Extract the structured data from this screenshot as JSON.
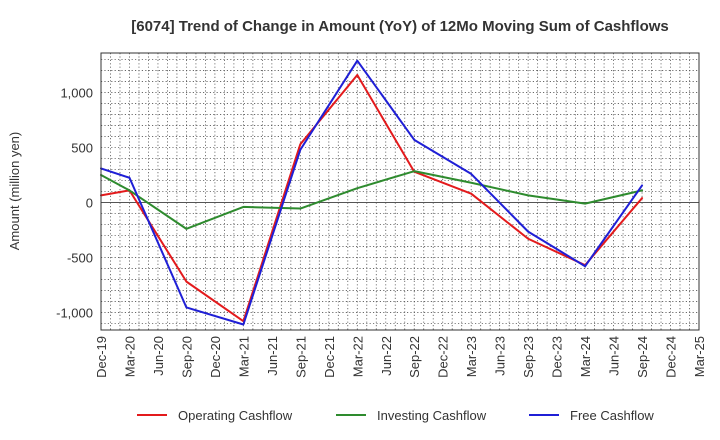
{
  "chart_data": {
    "type": "line",
    "title": "[6074]  Trend of Change in Amount (YoY) of 12Mo Moving Sum of Cashflows",
    "xlabel": "",
    "ylabel": "Amount (million yen)",
    "ylim": [
      -1160,
      1360
    ],
    "yticks": [
      -1000,
      -500,
      0,
      500,
      1000
    ],
    "ytick_labels": [
      "-1,000",
      "-500",
      "0",
      "500",
      "1,000"
    ],
    "categories": [
      "Dec-19",
      "Mar-20",
      "Jun-20",
      "Sep-20",
      "Dec-20",
      "Mar-21",
      "Jun-21",
      "Sep-21",
      "Dec-21",
      "Mar-22",
      "Jun-22",
      "Sep-22",
      "Dec-22",
      "Mar-23",
      "Jun-23",
      "Sep-23",
      "Dec-23",
      "Mar-24",
      "Jun-24",
      "Sep-24",
      "Dec-24",
      "Mar-25"
    ],
    "grid": true,
    "legend_position": "bottom",
    "series": [
      {
        "name": "Operating Cashflow",
        "color": "#e31a1c",
        "points": [
          {
            "x": "Dec-19",
            "y": 65
          },
          {
            "x": "Mar-20",
            "y": 110
          },
          {
            "x": "Sep-20",
            "y": -720
          },
          {
            "x": "Mar-21",
            "y": -1080
          },
          {
            "x": "Sep-21",
            "y": 530
          },
          {
            "x": "Mar-22",
            "y": 1160
          },
          {
            "x": "Sep-22",
            "y": 280
          },
          {
            "x": "Mar-23",
            "y": 80
          },
          {
            "x": "Sep-23",
            "y": -330
          },
          {
            "x": "Mar-24",
            "y": -570
          },
          {
            "x": "Sep-24",
            "y": 40
          }
        ]
      },
      {
        "name": "Investing Cashflow",
        "color": "#2e8b2e",
        "points": [
          {
            "x": "Dec-19",
            "y": 250
          },
          {
            "x": "Mar-20",
            "y": 110
          },
          {
            "x": "Sep-20",
            "y": -240
          },
          {
            "x": "Mar-21",
            "y": -40
          },
          {
            "x": "Sep-21",
            "y": -55
          },
          {
            "x": "Mar-22",
            "y": 130
          },
          {
            "x": "Sep-22",
            "y": 285
          },
          {
            "x": "Mar-23",
            "y": 180
          },
          {
            "x": "Sep-23",
            "y": 65
          },
          {
            "x": "Mar-24",
            "y": -10
          },
          {
            "x": "Sep-24",
            "y": 110
          }
        ]
      },
      {
        "name": "Free Cashflow",
        "color": "#1f1fd6",
        "points": [
          {
            "x": "Dec-19",
            "y": 310
          },
          {
            "x": "Mar-20",
            "y": 225
          },
          {
            "x": "Sep-20",
            "y": -955
          },
          {
            "x": "Mar-21",
            "y": -1110
          },
          {
            "x": "Sep-21",
            "y": 480
          },
          {
            "x": "Mar-22",
            "y": 1290
          },
          {
            "x": "Sep-22",
            "y": 570
          },
          {
            "x": "Mar-23",
            "y": 260
          },
          {
            "x": "Sep-23",
            "y": -265
          },
          {
            "x": "Mar-24",
            "y": -580
          },
          {
            "x": "Sep-24",
            "y": 155
          }
        ]
      }
    ]
  }
}
